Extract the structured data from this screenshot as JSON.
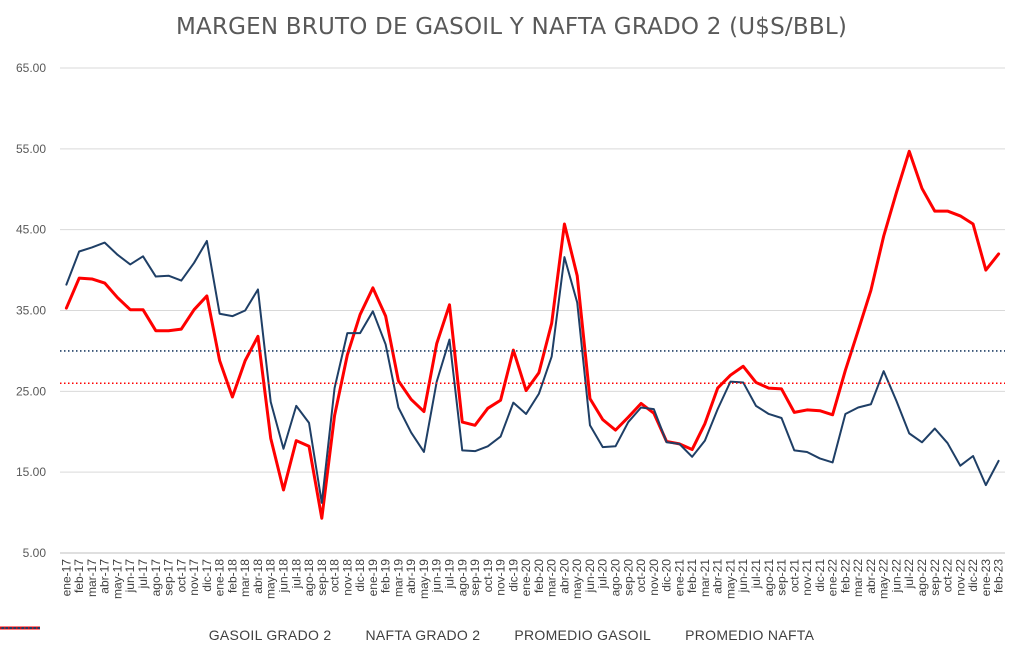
{
  "chart_data": {
    "type": "line",
    "title": "MARGEN BRUTO DE GASOIL Y NAFTA GRADO 2 (U$S/BBL)",
    "xlabel": "",
    "ylabel": "",
    "ylim": [
      5,
      65
    ],
    "yticks": [
      "5.00",
      "15.00",
      "25.00",
      "35.00",
      "45.00",
      "55.00",
      "65.00"
    ],
    "grid": true,
    "legend_position": "bottom",
    "categories": [
      "ene-17",
      "feb-17",
      "mar-17",
      "abr-17",
      "may-17",
      "jun-17",
      "jul-17",
      "ago-17",
      "sep-17",
      "oct-17",
      "nov-17",
      "dic-17",
      "ene-18",
      "feb-18",
      "mar-18",
      "abr-18",
      "may-18",
      "jun-18",
      "jul-18",
      "ago-18",
      "sep-18",
      "oct-18",
      "nov-18",
      "dic-18",
      "ene-19",
      "feb-19",
      "mar-19",
      "abr-19",
      "may-19",
      "jun-19",
      "jul-19",
      "ago-19",
      "sep-19",
      "oct-19",
      "nov-19",
      "dic-19",
      "ene-20",
      "feb-20",
      "mar-20",
      "abr-20",
      "may-20",
      "jun-20",
      "jul-20",
      "ago-20",
      "sep-20",
      "oct-20",
      "nov-20",
      "dic-20",
      "ene-21",
      "feb-21",
      "mar-21",
      "abr-21",
      "may-21",
      "jun-21",
      "jul-21",
      "ago-21",
      "sep-21",
      "oct-21",
      "nov-21",
      "dic-21",
      "ene-22",
      "feb-22",
      "mar-22",
      "abr-22",
      "may-22",
      "jun-22",
      "jul-22",
      "ago-22",
      "sep-22",
      "oct-22",
      "nov-22",
      "dic-22",
      "ene-23",
      "feb-23"
    ],
    "series": [
      {
        "name": "GASOIL GRADO 2",
        "color": "#ff0000",
        "style": "solid",
        "values": [
          35.3,
          39.0,
          38.9,
          38.4,
          36.6,
          35.1,
          35.1,
          32.5,
          32.5,
          32.7,
          35.1,
          36.8,
          28.8,
          24.3,
          28.8,
          31.8,
          19.2,
          12.8,
          18.9,
          18.2,
          9.3,
          22.0,
          29.5,
          34.5,
          37.8,
          34.3,
          26.3,
          24.0,
          22.5,
          30.9,
          35.7,
          21.2,
          20.8,
          22.9,
          23.9,
          30.1,
          25.1,
          27.3,
          33.4,
          45.7,
          39.3,
          24.1,
          21.5,
          20.2,
          21.8,
          23.5,
          22.3,
          18.8,
          18.5,
          17.8,
          21.0,
          25.4,
          27.0,
          28.1,
          26.1,
          25.4,
          25.3,
          22.4,
          22.7,
          22.6,
          22.1,
          27.6,
          32.5,
          37.5,
          44.2,
          49.6,
          54.7,
          50.1,
          47.3,
          47.3,
          46.7,
          45.7,
          40.0,
          42.0
        ]
      },
      {
        "name": "NAFTA GRADO 2",
        "color": "#1f3f66",
        "style": "solid",
        "values": [
          38.2,
          42.3,
          42.8,
          43.4,
          41.9,
          40.7,
          41.7,
          39.2,
          39.3,
          38.7,
          40.9,
          43.6,
          34.6,
          34.3,
          35.0,
          37.6,
          23.7,
          17.9,
          23.2,
          21.1,
          11.2,
          25.4,
          32.2,
          32.2,
          34.9,
          30.8,
          23.0,
          19.9,
          17.5,
          26.2,
          31.4,
          17.7,
          17.6,
          18.2,
          19.4,
          23.6,
          22.2,
          24.7,
          29.3,
          41.6,
          36.0,
          20.8,
          18.1,
          18.2,
          21.2,
          23.0,
          22.8,
          18.7,
          18.5,
          16.9,
          18.9,
          22.8,
          26.2,
          26.1,
          23.2,
          22.2,
          21.7,
          17.7,
          17.5,
          16.7,
          16.2,
          22.2,
          23.0,
          23.4,
          27.5,
          23.8,
          19.8,
          18.7,
          20.4,
          18.6,
          15.8,
          17.0,
          13.4,
          16.4
        ]
      },
      {
        "name": "PROMEDIO GASOIL",
        "color": "#1f3f66",
        "style": "dotted",
        "value": 30.0
      },
      {
        "name": "PROMEDIO NAFTA",
        "color": "#ff0000",
        "style": "dotted",
        "value": 26.0
      }
    ]
  }
}
